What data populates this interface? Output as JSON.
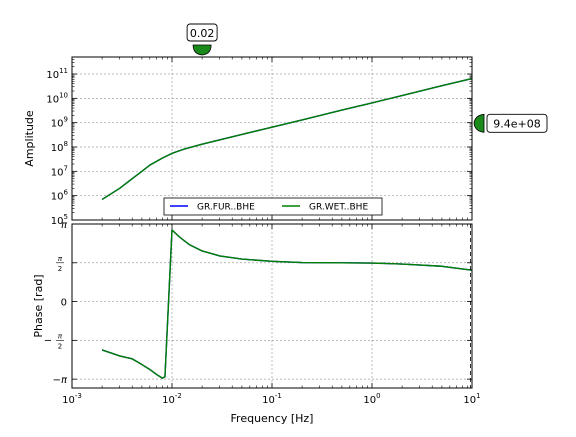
{
  "chart_data": {
    "type": "line",
    "x_scale": "log",
    "xlim": [
      0.001,
      10
    ],
    "xlabel": "Frequency [Hz]",
    "x_ticks": [
      {
        "value": 0.001,
        "base": "10",
        "exp": "-3"
      },
      {
        "value": 0.01,
        "base": "10",
        "exp": "-2"
      },
      {
        "value": 0.1,
        "base": "10",
        "exp": "-1"
      },
      {
        "value": 1,
        "base": "10",
        "exp": "0"
      },
      {
        "value": 10,
        "base": "10",
        "exp": "1"
      }
    ],
    "grid": true,
    "legend": {
      "placement": "lower-center of amplitude panel",
      "columns": 2
    },
    "series_styles": [
      {
        "name": "GR.FUR..BHE",
        "color": "#0000ff"
      },
      {
        "name": "GR.WET..BHE",
        "color": "#008000"
      }
    ],
    "panels": [
      {
        "id": "amplitude",
        "ylabel": "Amplitude",
        "y_scale": "log",
        "ylim": [
          100000,
          500000000000
        ],
        "y_ticks": [
          {
            "value": 100000,
            "base": "10",
            "exp": "5"
          },
          {
            "value": 1000000,
            "base": "10",
            "exp": "6"
          },
          {
            "value": 10000000,
            "base": "10",
            "exp": "7"
          },
          {
            "value": 100000000,
            "base": "10",
            "exp": "8"
          },
          {
            "value": 1000000000,
            "base": "10",
            "exp": "9"
          },
          {
            "value": 10000000000,
            "base": "10",
            "exp": "10"
          },
          {
            "value": 100000000000,
            "base": "10",
            "exp": "11"
          }
        ],
        "x": [
          0.002,
          0.003,
          0.004,
          0.005,
          0.006,
          0.008,
          0.01,
          0.013,
          0.02,
          0.05,
          0.1,
          0.2,
          0.5,
          1,
          2,
          5,
          10
        ],
        "series": [
          {
            "name": "GR.FUR..BHE",
            "values": [
              700000,
              2000000,
              5000000,
              10000000,
              18000000,
              35000000,
              55000000,
              80000000,
              130000000,
              330000000,
              650000000,
              1300000000,
              3300000000,
              6500000000,
              13000000000,
              33000000000,
              65000000000
            ]
          },
          {
            "name": "GR.WET..BHE",
            "values": [
              700000,
              2000000,
              5000000,
              10000000,
              18000000,
              35000000,
              55000000,
              80000000,
              130000000,
              330000000,
              650000000,
              1300000000,
              3300000000,
              6500000000,
              13000000000,
              33000000000,
              65000000000
            ]
          }
        ]
      },
      {
        "id": "phase",
        "ylabel": "Phase [rad]",
        "y_scale": "linear",
        "ylim": [
          -3.5,
          3.14159
        ],
        "y_ticks": [
          {
            "value": 3.14159,
            "sign": "",
            "num": "π",
            "den": ""
          },
          {
            "value": 1.5708,
            "sign": "",
            "num": "π",
            "den": "2"
          },
          {
            "value": 0,
            "sign": "",
            "num": "0",
            "den": ""
          },
          {
            "value": -1.5708,
            "sign": "−",
            "num": "π",
            "den": "2"
          },
          {
            "value": -3.14159,
            "sign": "−",
            "num": "π",
            "den": ""
          }
        ],
        "x": [
          0.002,
          0.003,
          0.004,
          0.005,
          0.006,
          0.007,
          0.008,
          0.0085,
          0.01,
          0.012,
          0.015,
          0.02,
          0.03,
          0.05,
          0.1,
          0.2,
          0.5,
          1,
          2,
          5,
          10
        ],
        "series": [
          {
            "name": "GR.FUR..BHE",
            "values": [
              -1.96,
              -2.2,
              -2.32,
              -2.55,
              -2.75,
              -2.95,
              -3.1,
              -3.05,
              2.9,
              2.6,
              2.3,
              2.05,
              1.85,
              1.72,
              1.63,
              1.58,
              1.57,
              1.56,
              1.52,
              1.43,
              1.27
            ]
          },
          {
            "name": "GR.WET..BHE",
            "values": [
              -1.96,
              -2.2,
              -2.32,
              -2.55,
              -2.75,
              -2.95,
              -3.1,
              -3.05,
              2.9,
              2.6,
              2.3,
              2.05,
              1.85,
              1.72,
              1.63,
              1.58,
              1.57,
              1.56,
              1.52,
              1.43,
              1.27
            ]
          }
        ]
      }
    ],
    "markers": [
      {
        "id": "frequency-marker",
        "axis": "x",
        "value": 0.02,
        "label": "0.02",
        "color": "#1a8a1a"
      },
      {
        "id": "amplitude-marker",
        "axis": "y",
        "value": 940000000,
        "label": "9.4e+08",
        "color": "#1a8a1a"
      }
    ]
  }
}
